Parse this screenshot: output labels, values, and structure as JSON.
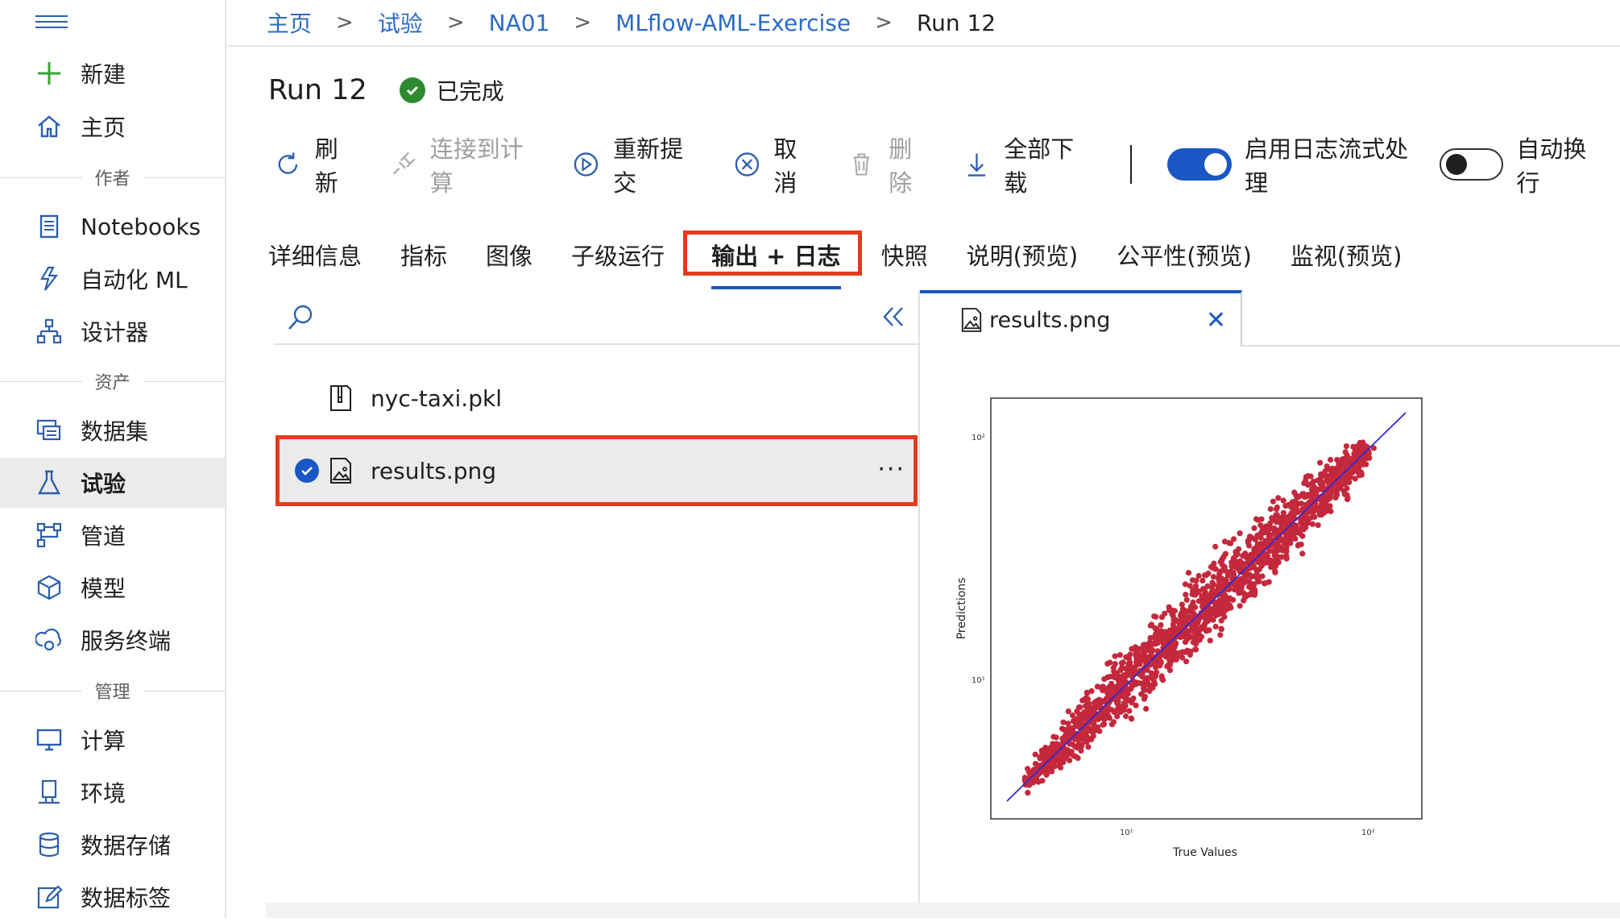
{
  "sidebar": {
    "items": [
      {
        "label": "新建",
        "icon": "plus-icon"
      },
      {
        "label": "主页",
        "icon": "home-icon"
      },
      {
        "label": "Notebooks",
        "icon": "notebook-icon"
      },
      {
        "label": "自动化 ML",
        "icon": "automl-icon"
      },
      {
        "label": "设计器",
        "icon": "designer-icon"
      },
      {
        "label": "数据集",
        "icon": "dataset-icon"
      },
      {
        "label": "试验",
        "icon": "flask-icon"
      },
      {
        "label": "管道",
        "icon": "pipeline-icon"
      },
      {
        "label": "模型",
        "icon": "cube-icon"
      },
      {
        "label": "服务终端",
        "icon": "endpoint-icon"
      },
      {
        "label": "计算",
        "icon": "compute-icon"
      },
      {
        "label": "环境",
        "icon": "environment-icon"
      },
      {
        "label": "数据存储",
        "icon": "datastore-icon"
      },
      {
        "label": "数据标签",
        "icon": "labeling-icon"
      }
    ],
    "sections": {
      "author": "作者",
      "assets": "资产",
      "manage": "管理"
    }
  },
  "breadcrumb": [
    "主页",
    "试验",
    "NA01",
    "MLflow-AML-Exercise",
    "Run 12"
  ],
  "run": {
    "title": "Run 12",
    "status": "已完成"
  },
  "toolbar": {
    "refresh": "刷新",
    "connect": "连接到计算",
    "resubmit": "重新提交",
    "cancel": "取消",
    "delete": "删除",
    "download_all": "全部下载",
    "log_streaming": "启用日志流式处理",
    "word_wrap": "自动换行"
  },
  "tabs": [
    "详细信息",
    "指标",
    "图像",
    "子级运行",
    "输出 + 日志",
    "快照",
    "说明(预览)",
    "公平性(预览)",
    "监视(预览)"
  ],
  "files": [
    {
      "name": "nyc-taxi.pkl",
      "selected": false
    },
    {
      "name": "results.png",
      "selected": true
    }
  ],
  "preview": {
    "tab_label": "results.png"
  },
  "chart_data": {
    "type": "scatter",
    "xlabel": "True Values",
    "ylabel": "Predictions",
    "xscale": "log",
    "yscale": "log",
    "xticks": [
      "10¹",
      "10²"
    ],
    "yticks": [
      "10¹",
      "10²"
    ],
    "colors": {
      "points": "#c4283c",
      "line": "#2b2bd6"
    }
  }
}
